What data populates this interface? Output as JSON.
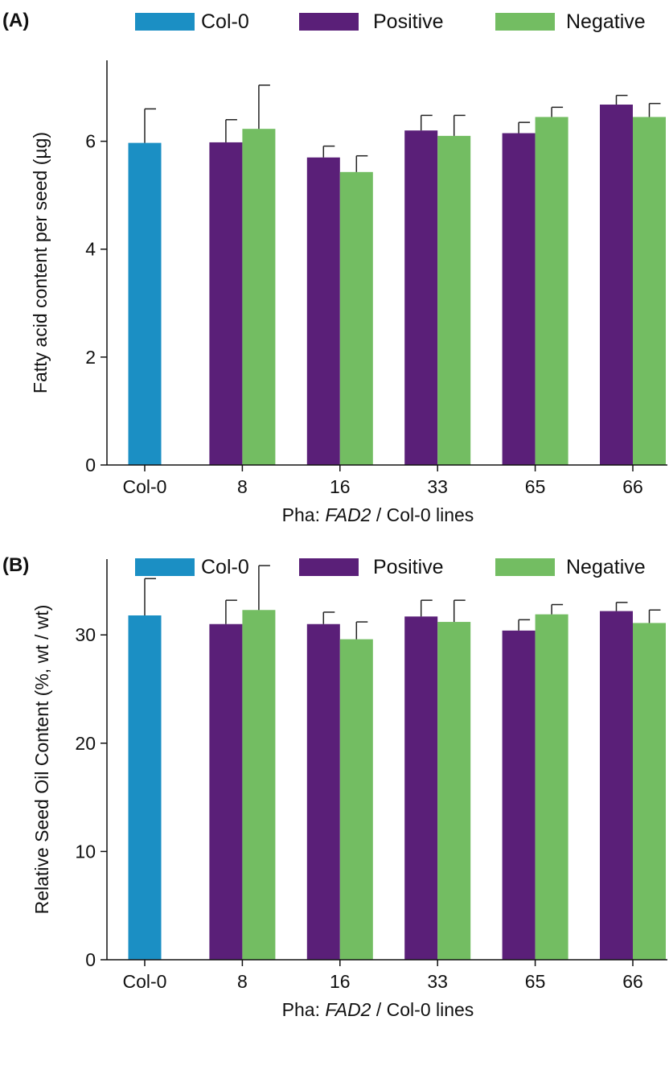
{
  "figure": {
    "colors": {
      "Col-0": "#1b8fc4",
      "Positive": "#5a1f78",
      "Negative": "#73bd62",
      "axis": "#111111"
    }
  },
  "chart_data": [
    {
      "panel_label": "(A)",
      "type": "bar",
      "categories": [
        "Col-0",
        "8",
        "16",
        "33",
        "65",
        "66"
      ],
      "xlabel_prefix": "Pha: ",
      "xlabel_italic": "FAD2",
      "xlabel_suffix": " / Col-0 lines",
      "ylabel": "Fatty acid content per seed (µg)",
      "ylim": [
        0,
        7.5
      ],
      "yticks": [
        0,
        2,
        4,
        6
      ],
      "grid": false,
      "legend_position": "top",
      "series": [
        {
          "name": "Col-0",
          "values": [
            5.97,
            null,
            null,
            null,
            null,
            null
          ],
          "errors": [
            0.63,
            null,
            null,
            null,
            null,
            null
          ]
        },
        {
          "name": "Positive",
          "values": [
            null,
            5.98,
            5.7,
            6.2,
            6.15,
            6.68
          ],
          "errors": [
            null,
            0.42,
            0.21,
            0.28,
            0.2,
            0.17
          ]
        },
        {
          "name": "Negative",
          "values": [
            null,
            6.23,
            5.43,
            6.1,
            6.45,
            6.45
          ],
          "errors": [
            null,
            0.81,
            0.3,
            0.38,
            0.18,
            0.25
          ]
        }
      ]
    },
    {
      "panel_label": "(B)",
      "type": "bar",
      "categories": [
        "Col-0",
        "8",
        "16",
        "33",
        "65",
        "66"
      ],
      "xlabel_prefix": "Pha: ",
      "xlabel_italic": "FAD2",
      "xlabel_suffix": " / Col-0 lines",
      "ylabel": "Relative Seed Oil Content (%, wt / wt)",
      "ylim": [
        0,
        37
      ],
      "yticks": [
        0,
        10,
        20,
        30
      ],
      "grid": false,
      "legend_position": "top",
      "series": [
        {
          "name": "Col-0",
          "values": [
            31.8,
            null,
            null,
            null,
            null,
            null
          ],
          "errors": [
            3.4,
            null,
            null,
            null,
            null,
            null
          ]
        },
        {
          "name": "Positive",
          "values": [
            null,
            31.0,
            31.0,
            31.7,
            30.4,
            32.2
          ],
          "errors": [
            null,
            2.2,
            1.1,
            1.5,
            1.0,
            0.8
          ]
        },
        {
          "name": "Negative",
          "values": [
            null,
            32.3,
            29.6,
            31.2,
            31.9,
            31.1
          ],
          "errors": [
            null,
            4.1,
            1.6,
            2.0,
            0.9,
            1.2
          ]
        }
      ]
    }
  ]
}
